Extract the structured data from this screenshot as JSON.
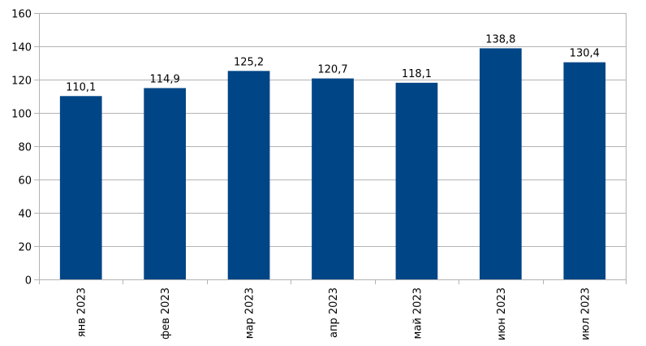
{
  "chart_data": {
    "type": "bar",
    "categories": [
      "янв 2023",
      "фев 2023",
      "мар 2023",
      "апр 2023",
      "май 2023",
      "июн 2023",
      "июл 2023"
    ],
    "values": [
      110.1,
      114.9,
      125.2,
      120.7,
      118.1,
      138.8,
      130.4
    ],
    "value_labels": [
      "110,1",
      "114,9",
      "125,2",
      "120,7",
      "118,1",
      "138,8",
      "130,4"
    ],
    "y_ticks": [
      0,
      20,
      40,
      60,
      80,
      100,
      120,
      140,
      160
    ],
    "ylim": [
      0,
      160
    ],
    "grid": true,
    "legend": "none",
    "bar_color": "#004586",
    "grid_color": "#b3b3b3"
  }
}
